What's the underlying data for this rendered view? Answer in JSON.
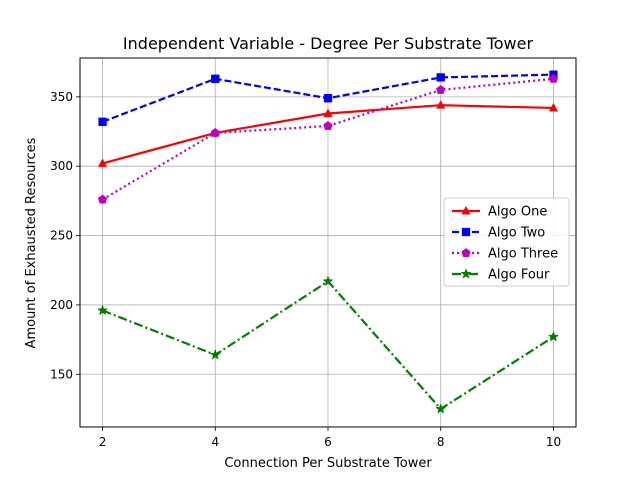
{
  "chart_data": {
    "type": "line",
    "title": "Independent Variable - Degree Per Substrate Tower",
    "xlabel": "Connection Per Substrate Tower",
    "ylabel": "Amount of Exhausted Resources",
    "x": [
      2,
      4,
      6,
      8,
      10
    ],
    "xlim": [
      1.6,
      10.4
    ],
    "ylim": [
      112,
      378
    ],
    "yticks": [
      150,
      200,
      250,
      300,
      350
    ],
    "grid": true,
    "legend_position": "center-right",
    "series": [
      {
        "name": "Algo One",
        "values": [
          302,
          324,
          338,
          344,
          342
        ],
        "color": "#ff0000",
        "marker": "triangle",
        "linestyle": "solid"
      },
      {
        "name": "Algo Two",
        "values": [
          332,
          363,
          349,
          364,
          366
        ],
        "color": "#0000ff",
        "marker": "square",
        "linestyle": "dashed"
      },
      {
        "name": "Algo Three",
        "values": [
          276,
          324,
          329,
          355,
          363
        ],
        "color": "#bf00bf",
        "marker": "pentagon",
        "linestyle": "dotted"
      },
      {
        "name": "Algo Four",
        "values": [
          196,
          164,
          217,
          125,
          177
        ],
        "color": "#008000",
        "marker": "star",
        "linestyle": "dashdot"
      }
    ]
  }
}
